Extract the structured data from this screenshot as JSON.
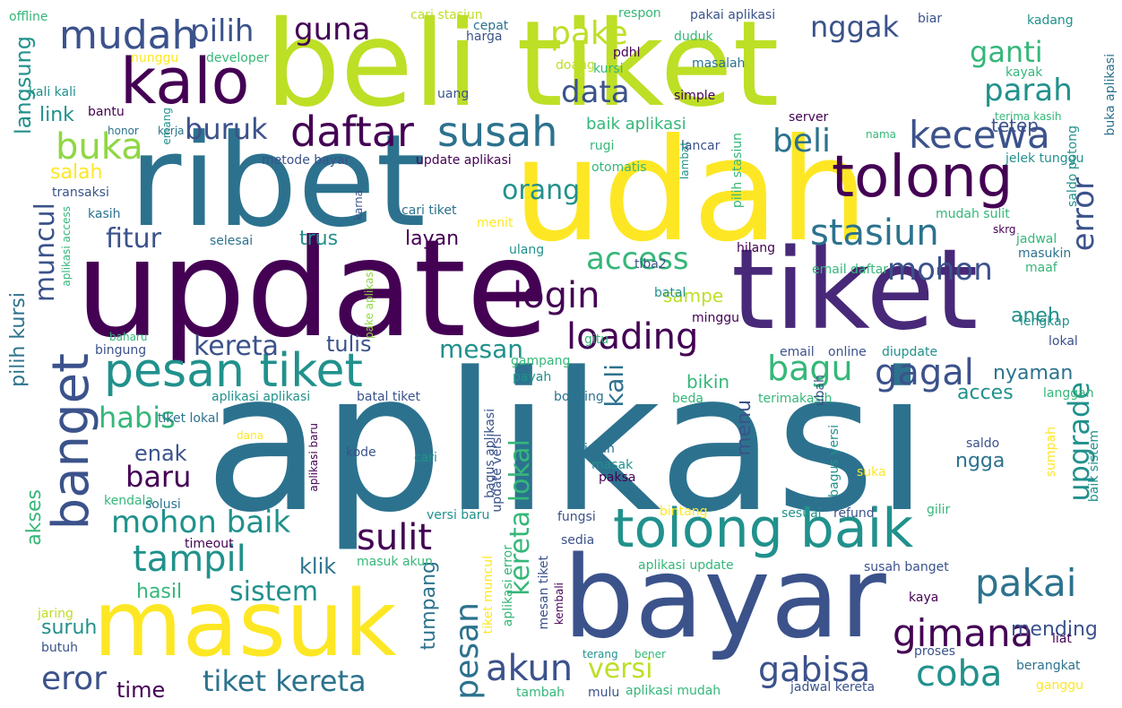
{
  "palette": {
    "dark_purple": "#440154",
    "indigo": "#3b528b",
    "teal": "#2c728e",
    "green_teal": "#21918c",
    "green": "#35b779",
    "light_green": "#8fd744",
    "yellow_green": "#bddf26",
    "yellow": "#fde725",
    "background": "#ffffff"
  },
  "words": [
    {
      "text": "aplikasi",
      "color": "#2c728e"
    },
    {
      "text": "beli tiket",
      "color": "#bddf26"
    },
    {
      "text": "update",
      "color": "#440154"
    },
    {
      "text": "udah",
      "color": "#fde725"
    },
    {
      "text": "ribet",
      "color": "#2c728e"
    },
    {
      "text": "tiket",
      "color": "#482878"
    },
    {
      "text": "bayar",
      "color": "#3b528b"
    },
    {
      "text": "masuk",
      "color": "#fde725"
    },
    {
      "text": "kalo",
      "color": "#440154"
    },
    {
      "text": "tolong",
      "color": "#440154"
    },
    {
      "text": "tolong baik",
      "color": "#21918c"
    },
    {
      "text": "banget",
      "color": "#3b528b"
    },
    {
      "text": "pesan tiket",
      "color": "#21918c"
    },
    {
      "text": "mudah",
      "color": "#3b528b"
    },
    {
      "text": "susah",
      "color": "#2c728e"
    },
    {
      "text": "daftar",
      "color": "#440154"
    },
    {
      "text": "buka",
      "color": "#8fd744"
    },
    {
      "text": "login",
      "color": "#440154"
    },
    {
      "text": "loading",
      "color": "#440154"
    },
    {
      "text": "kecewa",
      "color": "#3b528b"
    },
    {
      "text": "stasiun",
      "color": "#2c728e"
    },
    {
      "text": "beli",
      "color": "#2c728e"
    },
    {
      "text": "gagal",
      "color": "#3b528b"
    },
    {
      "text": "bagu",
      "color": "#35b779"
    },
    {
      "text": "gimana",
      "color": "#440154"
    },
    {
      "text": "pakai",
      "color": "#2c728e"
    },
    {
      "text": "coba",
      "color": "#21918c"
    },
    {
      "text": "gabisa",
      "color": "#3b528b"
    },
    {
      "text": "akun",
      "color": "#3b528b"
    },
    {
      "text": "sulit",
      "color": "#440154"
    },
    {
      "text": "tampil",
      "color": "#21918c"
    },
    {
      "text": "mohon baik",
      "color": "#21918c"
    },
    {
      "text": "tiket kereta",
      "color": "#2c728e"
    },
    {
      "text": "pesan",
      "color": "#2c728e"
    },
    {
      "text": "eror",
      "color": "#3b528b"
    },
    {
      "text": "access",
      "color": "#35b779"
    },
    {
      "text": "mohon",
      "color": "#3b528b"
    },
    {
      "text": "kereta",
      "color": "#3b528b"
    },
    {
      "text": "error",
      "color": "#3b528b"
    },
    {
      "text": "upgrade",
      "color": "#21918c"
    },
    {
      "text": "pilih",
      "color": "#3b528b"
    },
    {
      "text": "guna",
      "color": "#440154"
    },
    {
      "text": "pake",
      "color": "#bddf26"
    },
    {
      "text": "nggak",
      "color": "#3b528b"
    },
    {
      "text": "ganti",
      "color": "#35b779"
    },
    {
      "text": "data",
      "color": "#3b528b"
    },
    {
      "text": "parah",
      "color": "#21918c"
    },
    {
      "text": "buruk",
      "color": "#3b528b"
    },
    {
      "text": "orang",
      "color": "#21918c"
    },
    {
      "text": "fitur",
      "color": "#3b528b"
    },
    {
      "text": "muncul",
      "color": "#3b528b"
    },
    {
      "text": "langsung",
      "color": "#21918c"
    },
    {
      "text": "habis",
      "color": "#35b779"
    },
    {
      "text": "baru",
      "color": "#440154"
    },
    {
      "text": "sistem",
      "color": "#21918c"
    },
    {
      "text": "mesan",
      "color": "#21918c"
    },
    {
      "text": "versi",
      "color": "#bddf26"
    },
    {
      "text": "kereta lokal",
      "color": "#35b779"
    },
    {
      "text": "kali",
      "color": "#2c728e"
    },
    {
      "text": "tetep",
      "color": "#3b528b"
    },
    {
      "text": "link",
      "color": "#21918c"
    },
    {
      "text": "salah",
      "color": "#fde725"
    },
    {
      "text": "layan",
      "color": "#440154"
    },
    {
      "text": "trus",
      "color": "#21918c"
    },
    {
      "text": "sampe",
      "color": "#bddf26"
    },
    {
      "text": "tulis",
      "color": "#3b528b"
    },
    {
      "text": "pilih kursi",
      "color": "#2c728e"
    },
    {
      "text": "akses",
      "color": "#35b779"
    },
    {
      "text": "enak",
      "color": "#3b528b"
    },
    {
      "text": "klik",
      "color": "#2c728e"
    },
    {
      "text": "hasil",
      "color": "#35b779"
    },
    {
      "text": "suruh",
      "color": "#21918c"
    },
    {
      "text": "time",
      "color": "#440154"
    },
    {
      "text": "tumpang",
      "color": "#2c728e"
    },
    {
      "text": "menu",
      "color": "#3b528b"
    },
    {
      "text": "bikin",
      "color": "#35b779"
    },
    {
      "text": "aneh",
      "color": "#21918c"
    },
    {
      "text": "nyaman",
      "color": "#2c728e"
    },
    {
      "text": "acces",
      "color": "#21918c"
    },
    {
      "text": "ngga",
      "color": "#2c728e"
    },
    {
      "text": "mending",
      "color": "#3b528b"
    },
    {
      "text": "baik aplikasi",
      "color": "#35b779"
    },
    {
      "text": "metode bayar",
      "color": "#3b528b"
    },
    {
      "text": "update aplikasi",
      "color": "#440154"
    },
    {
      "text": "cari tiket",
      "color": "#2c728e"
    },
    {
      "text": "transaksi",
      "color": "#3b528b"
    },
    {
      "text": "kasih",
      "color": "#2c728e"
    },
    {
      "text": "bantu",
      "color": "#440154"
    },
    {
      "text": "offline",
      "color": "#35b779"
    },
    {
      "text": "harga",
      "color": "#3b528b"
    },
    {
      "text": "nunggu",
      "color": "#fde725"
    },
    {
      "text": "developer",
      "color": "#35b779"
    },
    {
      "text": "kali kali",
      "color": "#21918c"
    },
    {
      "text": "honor",
      "color": "#2c728e"
    },
    {
      "text": "kerja",
      "color": "#2c728e"
    },
    {
      "text": "cari stasiun",
      "color": "#bddf26"
    },
    {
      "text": "respon",
      "color": "#35b779"
    },
    {
      "text": "pakai aplikasi",
      "color": "#3b528b"
    },
    {
      "text": "biar",
      "color": "#3b528b"
    },
    {
      "text": "kadang",
      "color": "#21918c"
    },
    {
      "text": "cepat",
      "color": "#2c728e"
    },
    {
      "text": "duduk",
      "color": "#35b779"
    },
    {
      "text": "pdhl",
      "color": "#440154"
    },
    {
      "text": "doang",
      "color": "#bddf26"
    },
    {
      "text": "masalah",
      "color": "#2c728e"
    },
    {
      "text": "kursi",
      "color": "#35b779"
    },
    {
      "text": "kayak",
      "color": "#35b779"
    },
    {
      "text": "simple",
      "color": "#440154"
    },
    {
      "text": "uang",
      "color": "#3b528b"
    },
    {
      "text": "buka aplikasi",
      "color": "#2c728e"
    },
    {
      "text": "terima kasih",
      "color": "#35b779"
    },
    {
      "text": "server",
      "color": "#440154"
    },
    {
      "text": "rugi",
      "color": "#35b779"
    },
    {
      "text": "lancar",
      "color": "#3b528b"
    },
    {
      "text": "nama",
      "color": "#35b779"
    },
    {
      "text": "otomatis",
      "color": "#35b779"
    },
    {
      "text": "jelek tunggu",
      "color": "#21918c"
    },
    {
      "text": "saldo potong",
      "color": "#21918c"
    },
    {
      "text": "mudah sulit",
      "color": "#35b779"
    },
    {
      "text": "skrg",
      "color": "#440154"
    },
    {
      "text": "jadwal",
      "color": "#35b779"
    },
    {
      "text": "masukin",
      "color": "#2c728e"
    },
    {
      "text": "maaf",
      "color": "#35b779"
    },
    {
      "text": "hilang",
      "color": "#440154"
    },
    {
      "text": "email daftar",
      "color": "#35b779"
    },
    {
      "text": "menit",
      "color": "#fde725"
    },
    {
      "text": "selesai",
      "color": "#2c728e"
    },
    {
      "text": "ulang",
      "color": "#21918c"
    },
    {
      "text": "tiba2",
      "color": "#3b528b"
    },
    {
      "text": "batal",
      "color": "#21918c"
    },
    {
      "text": "minggu",
      "color": "#440154"
    },
    {
      "text": "gitu",
      "color": "#35b779"
    },
    {
      "text": "email",
      "color": "#3b528b"
    },
    {
      "text": "online",
      "color": "#3b528b"
    },
    {
      "text": "diupdate",
      "color": "#21918c"
    },
    {
      "text": "lokal",
      "color": "#3b528b"
    },
    {
      "text": "lengkap",
      "color": "#21918c"
    },
    {
      "text": "bingung",
      "color": "#3b528b"
    },
    {
      "text": "baharu",
      "color": "#35b779"
    },
    {
      "text": "gampang",
      "color": "#35b779"
    },
    {
      "text": "payah",
      "color": "#21918c"
    },
    {
      "text": "booking",
      "color": "#2c728e"
    },
    {
      "text": "beda",
      "color": "#35b779"
    },
    {
      "text": "terimakasih",
      "color": "#35b779"
    },
    {
      "text": "langgan",
      "color": "#35b779"
    },
    {
      "text": "aplikasi aplikasi",
      "color": "#21918c"
    },
    {
      "text": "batal tiket",
      "color": "#3b528b"
    },
    {
      "text": "tiket lokal",
      "color": "#2c728e"
    },
    {
      "text": "dana",
      "color": "#fde725"
    },
    {
      "text": "kode",
      "color": "#3b528b"
    },
    {
      "text": "cari",
      "color": "#21918c"
    },
    {
      "text": "jalan",
      "color": "#2c728e"
    },
    {
      "text": "masak",
      "color": "#21918c"
    },
    {
      "text": "paksa",
      "color": "#440154"
    },
    {
      "text": "saldo",
      "color": "#3b528b"
    },
    {
      "text": "suka",
      "color": "#fde725"
    },
    {
      "text": "sumpah",
      "color": "#fde725"
    },
    {
      "text": "versi baru",
      "color": "#21918c"
    },
    {
      "text": "fungsi",
      "color": "#3b528b"
    },
    {
      "text": "bintang",
      "color": "#fde725"
    },
    {
      "text": "sesuai",
      "color": "#21918c"
    },
    {
      "text": "refund",
      "color": "#3b528b"
    },
    {
      "text": "gilir",
      "color": "#35b779"
    },
    {
      "text": "kendala",
      "color": "#35b779"
    },
    {
      "text": "solusi",
      "color": "#2c728e"
    },
    {
      "text": "timeout",
      "color": "#440154"
    },
    {
      "text": "masuk akun",
      "color": "#35b779"
    },
    {
      "text": "sedia",
      "color": "#3b528b"
    },
    {
      "text": "aplikasi update",
      "color": "#35b779"
    },
    {
      "text": "susah banget",
      "color": "#3b528b"
    },
    {
      "text": "kaya",
      "color": "#440154"
    },
    {
      "text": "liat",
      "color": "#440154"
    },
    {
      "text": "jaring",
      "color": "#bddf26"
    },
    {
      "text": "butuh",
      "color": "#3b528b"
    },
    {
      "text": "terang",
      "color": "#21918c"
    },
    {
      "text": "bener",
      "color": "#35b779"
    },
    {
      "text": "proses",
      "color": "#3b528b"
    },
    {
      "text": "berangkat",
      "color": "#2c728e"
    },
    {
      "text": "tambah",
      "color": "#35b779"
    },
    {
      "text": "mulu",
      "color": "#3b528b"
    },
    {
      "text": "aplikasi mudah",
      "color": "#35b779"
    },
    {
      "text": "jadwal kereta",
      "color": "#3b528b"
    },
    {
      "text": "ganggu",
      "color": "#fde725"
    },
    {
      "text": "emang",
      "color": "#21918c"
    },
    {
      "text": "lambat",
      "color": "#21918c"
    },
    {
      "text": "pilih stasiun",
      "color": "#35b779"
    },
    {
      "text": "karna",
      "color": "#3b528b"
    },
    {
      "text": "pake aplikasi",
      "color": "#8fd744"
    },
    {
      "text": "ubah",
      "color": "#3b528b"
    },
    {
      "text": "aplikasi access",
      "color": "#35b779"
    },
    {
      "text": "bagus aplikasi",
      "color": "#3b528b"
    },
    {
      "text": "update versi",
      "color": "#3b528b"
    },
    {
      "text": "aplikasi baru",
      "color": "#440154"
    },
    {
      "text": "aplikasi error",
      "color": "#35b779"
    },
    {
      "text": "tiket muncul",
      "color": "#fde725"
    },
    {
      "text": "mesan tiket",
      "color": "#3b528b"
    },
    {
      "text": "kembali",
      "color": "#440154"
    },
    {
      "text": "bagus versi",
      "color": "#21918c"
    },
    {
      "text": "baik sistem",
      "color": "#21918c"
    }
  ]
}
